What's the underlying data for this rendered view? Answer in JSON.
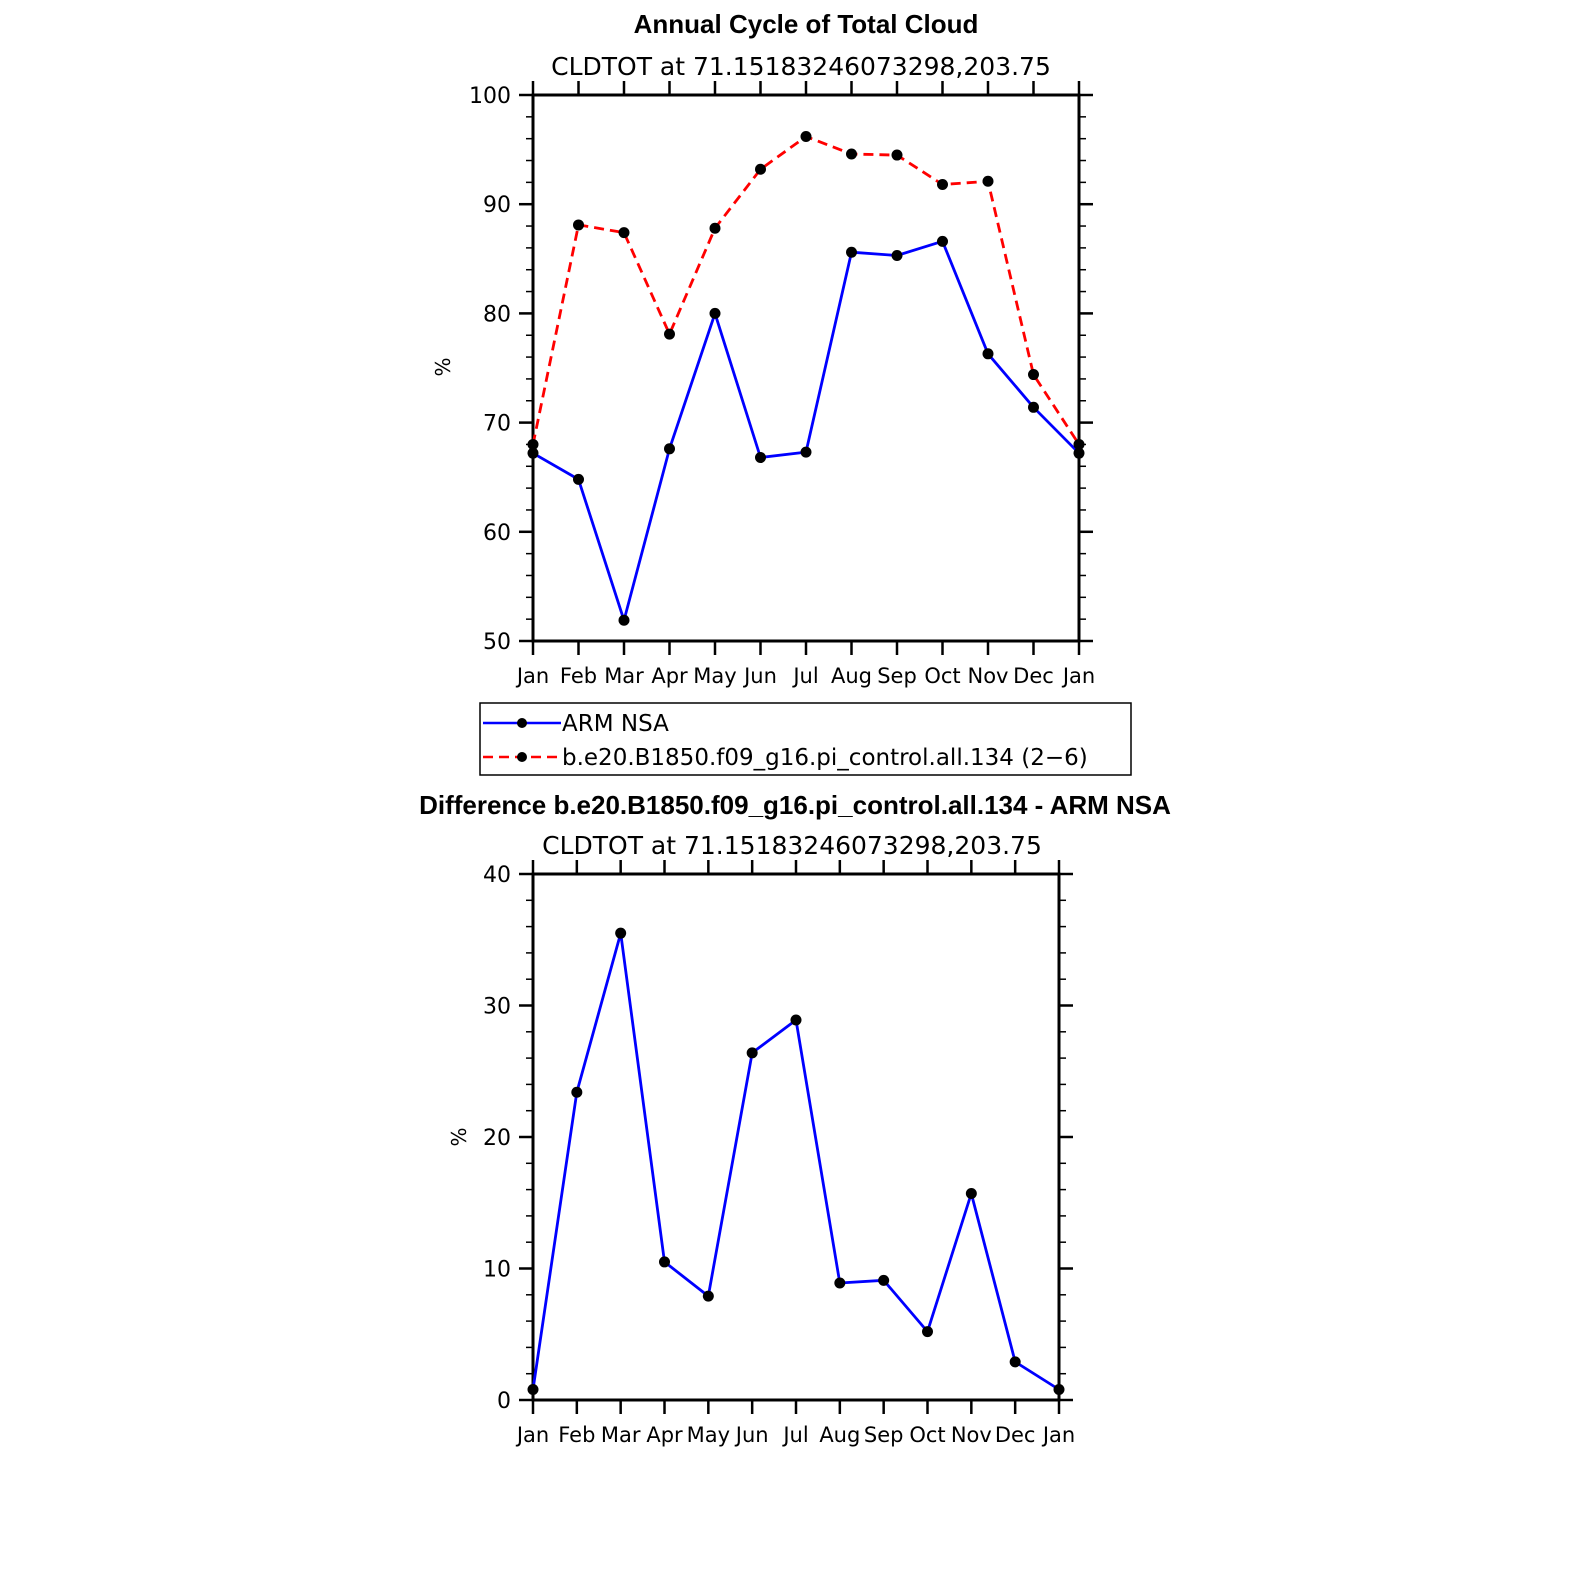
{
  "chart_data": [
    {
      "type": "line",
      "title": "Annual Cycle of Total Cloud",
      "subtitle": "CLDTOT at 71.15183246073298,203.75",
      "ylabel": "%",
      "ylim": [
        50,
        100
      ],
      "yticks": [
        "50",
        "60",
        "70",
        "80",
        "90",
        "100"
      ],
      "categories": [
        "Jan",
        "Feb",
        "Mar",
        "Apr",
        "May",
        "Jun",
        "Jul",
        "Aug",
        "Sep",
        "Oct",
        "Nov",
        "Dec",
        "Jan"
      ],
      "series": [
        {
          "name": "ARM NSA",
          "color": "#0000ff",
          "dashed": false,
          "values": [
            67.2,
            64.8,
            51.9,
            67.6,
            80.0,
            66.8,
            67.3,
            85.6,
            85.3,
            86.6,
            76.3,
            71.4,
            67.2
          ]
        },
        {
          "name": "b.e20.B1850.f09_g16.pi_control.all.134 (2−6)",
          "color": "#ff0000",
          "dashed": true,
          "values": [
            68.0,
            88.1,
            87.4,
            78.1,
            87.8,
            93.2,
            96.2,
            94.6,
            94.5,
            91.8,
            92.1,
            74.4,
            68.0
          ]
        }
      ],
      "legend_position": "below"
    },
    {
      "type": "line",
      "title": "Difference b.e20.B1850.f09_g16.pi_control.all.134 - ARM NSA",
      "subtitle": "CLDTOT at 71.15183246073298,203.75",
      "ylabel": "%",
      "ylim": [
        0,
        40
      ],
      "yticks": [
        "0",
        "10",
        "20",
        "30",
        "40"
      ],
      "categories": [
        "Jan",
        "Feb",
        "Mar",
        "Apr",
        "May",
        "Jun",
        "Jul",
        "Aug",
        "Sep",
        "Oct",
        "Nov",
        "Dec",
        "Jan"
      ],
      "series": [
        {
          "color": "#0000ff",
          "dashed": false,
          "values": [
            0.8,
            23.4,
            35.5,
            10.5,
            7.9,
            26.4,
            28.9,
            8.9,
            9.1,
            5.2,
            15.7,
            2.9,
            0.8
          ]
        }
      ]
    }
  ]
}
